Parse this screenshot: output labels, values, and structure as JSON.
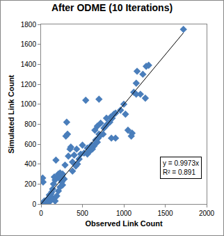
{
  "chart_data": {
    "type": "scatter",
    "title": "After ODME (10 Iterations)",
    "x_label": "Observed Link Count",
    "y_label": "Simulated Link Count",
    "x": [
      1720,
      1300,
      1270,
      1230,
      1160,
      1150,
      1120,
      1260,
      1200,
      1100,
      1090,
      1050,
      1000,
      960,
      900,
      880,
      860,
      900,
      830,
      800,
      780,
      760,
      750,
      700,
      690,
      680,
      650,
      640,
      620,
      600,
      590,
      570,
      560,
      540,
      700,
      680,
      720,
      650,
      500,
      430,
      400,
      380,
      360,
      350,
      330,
      310,
      320,
      300,
      290,
      280,
      260,
      250,
      230,
      220,
      210,
      200,
      180,
      170,
      160,
      150,
      140,
      130,
      120,
      110,
      100,
      90,
      80,
      70,
      60,
      50,
      40,
      30,
      20,
      25,
      15,
      10,
      5,
      100,
      120,
      150,
      170,
      190,
      210,
      230,
      250,
      260,
      380,
      420,
      440,
      460,
      480,
      520,
      560,
      610,
      660,
      720,
      790,
      840,
      850,
      1020,
      1150
    ],
    "values": [
      1750,
      1390,
      1380,
      1300,
      1330,
      1210,
      1120,
      1060,
      1100,
      710,
      680,
      740,
      1000,
      940,
      910,
      900,
      860,
      660,
      820,
      800,
      780,
      760,
      700,
      700,
      660,
      620,
      600,
      580,
      550,
      560,
      530,
      520,
      500,
      1040,
      1050,
      780,
      810,
      740,
      590,
      550,
      490,
      420,
      570,
      550,
      480,
      820,
      700,
      680,
      390,
      250,
      300,
      280,
      310,
      260,
      300,
      270,
      440,
      240,
      270,
      200,
      150,
      120,
      100,
      80,
      90,
      60,
      40,
      20,
      10,
      0,
      30,
      5,
      260,
      220,
      0,
      0,
      0,
      20,
      40,
      50,
      30,
      80,
      130,
      170,
      220,
      190,
      330,
      380,
      400,
      450,
      500,
      510,
      560,
      590,
      640,
      690,
      860,
      870,
      660,
      900,
      1100
    ],
    "color": "#4a7ebb",
    "marker": "diamond",
    "trendline": {
      "slope": 0.9973,
      "x": [
        0,
        1720
      ],
      "color": "#000000"
    },
    "annotations": [
      "y = 0.9973x",
      "R² = 0.891"
    ],
    "xlim": [
      0,
      2000
    ],
    "xticks": [
      0,
      500,
      1000,
      1500,
      2000
    ],
    "ylim": [
      0,
      1800
    ],
    "yticks": [
      0,
      200,
      400,
      600,
      800,
      1000,
      1200,
      1400,
      1600,
      1800
    ],
    "grid": false
  }
}
